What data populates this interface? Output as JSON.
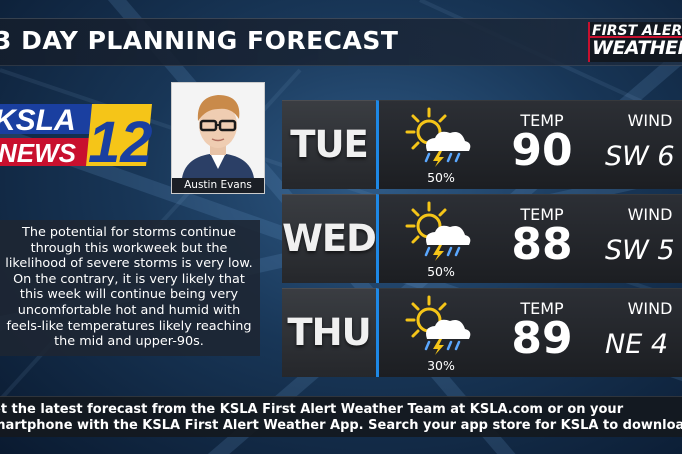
{
  "title": "3 DAY PLANNING FORECAST",
  "brand": {
    "line1": "FIRST ALERT",
    "line2": "WEATHER"
  },
  "logo": {
    "station": "KSLA",
    "news": "NEWS",
    "channel": "12"
  },
  "meteorologist": {
    "name": "Austin Evans"
  },
  "blurb": "The potential for storms continue through this workweek but the likelihood of severe storms is very low. On the contrary, it is very likely that this week will continue being very uncomfortable hot and humid with feels-like temperatures likely reaching the mid and upper-90s.",
  "forecast": [
    {
      "day": "TUE",
      "icon": "partly-sunny-thunderstorm-icon",
      "pop": "50%",
      "temp_label": "TEMP",
      "temp": "90",
      "wind_label": "WIND",
      "wind": "SW 6"
    },
    {
      "day": "WED",
      "icon": "partly-sunny-thunderstorm-icon",
      "pop": "50%",
      "temp_label": "TEMP",
      "temp": "88",
      "wind_label": "WIND",
      "wind": "SW 5"
    },
    {
      "day": "THU",
      "icon": "partly-sunny-thunderstorm-icon",
      "pop": "30%",
      "temp_label": "TEMP",
      "temp": "89",
      "wind_label": "WIND",
      "wind": "NE 4"
    }
  ],
  "ticker": {
    "line1": "et the latest forecast from the KSLA First Alert Weather Team at KSLA.com or on your",
    "line2": "martphone with the KSLA First Alert Weather App. Search your app store for KSLA to download"
  },
  "colors": {
    "accent": "#1e88e5",
    "brand_red": "#c8102e",
    "logo_yellow": "#f5c518",
    "logo_blue": "#1a3fa0"
  }
}
